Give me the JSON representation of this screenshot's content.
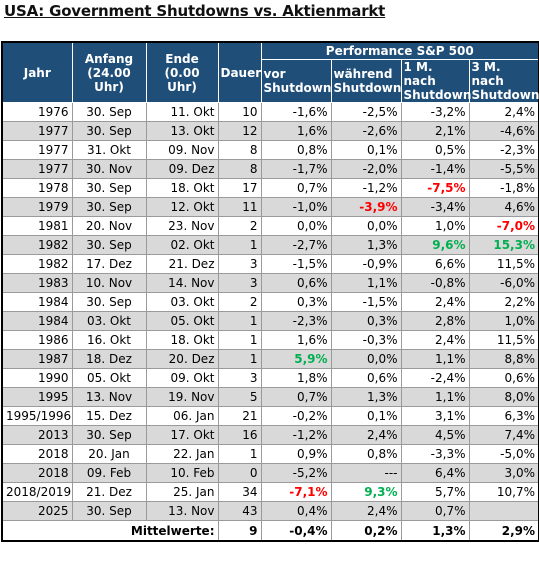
{
  "title": "USA: Government Shutdowns vs. Aktienmarkt",
  "header": {
    "jahr": "Jahr",
    "anfang": "Anfang (24.00 Uhr)",
    "ende": "Ende (0.00 Uhr)",
    "dauer": "Dauer",
    "perf": "Performance S&P 500",
    "vor": "vor Shutdown",
    "waehrend": "während Shutdown",
    "m1": "1 M. nach Shutdown",
    "m3": "3 M. nach Shutdown"
  },
  "rows": [
    {
      "jahr": "1976",
      "anfang": "30. Sep",
      "ende": "11. Okt",
      "dauer": "10",
      "vor": "-1,6%",
      "waehrend": "-2,5%",
      "m1": "-3,2%",
      "m3": "2,4%"
    },
    {
      "jahr": "1977",
      "anfang": "30. Sep",
      "ende": "13. Okt",
      "dauer": "12",
      "vor": "1,6%",
      "waehrend": "-2,6%",
      "m1": "2,1%",
      "m3": "-4,6%"
    },
    {
      "jahr": "1977",
      "anfang": "31. Okt",
      "ende": "09. Nov",
      "dauer": "8",
      "vor": "0,8%",
      "waehrend": "0,1%",
      "m1": "0,5%",
      "m3": "-2,3%"
    },
    {
      "jahr": "1977",
      "anfang": "30. Nov",
      "ende": "09. Dez",
      "dauer": "8",
      "vor": "-1,7%",
      "waehrend": "-2,0%",
      "m1": "-1,4%",
      "m3": "-5,5%"
    },
    {
      "jahr": "1978",
      "anfang": "30. Sep",
      "ende": "18. Okt",
      "dauer": "17",
      "vor": "0,7%",
      "waehrend": "-1,2%",
      "m1": "-7,5%",
      "m3": "-1,8%",
      "hl": {
        "m1": "red"
      }
    },
    {
      "jahr": "1979",
      "anfang": "30. Sep",
      "ende": "12. Okt",
      "dauer": "11",
      "vor": "-1,0%",
      "waehrend": "-3,9%",
      "m1": "-3,4%",
      "m3": "4,6%",
      "hl": {
        "waehrend": "red"
      }
    },
    {
      "jahr": "1981",
      "anfang": "20. Nov",
      "ende": "23. Nov",
      "dauer": "2",
      "vor": "0,0%",
      "waehrend": "0,0%",
      "m1": "1,0%",
      "m3": "-7,0%",
      "hl": {
        "m3": "red"
      }
    },
    {
      "jahr": "1982",
      "anfang": "30. Sep",
      "ende": "02. Okt",
      "dauer": "1",
      "vor": "-2,7%",
      "waehrend": "1,3%",
      "m1": "9,6%",
      "m3": "15,3%",
      "hl": {
        "m1": "green",
        "m3": "green"
      }
    },
    {
      "jahr": "1982",
      "anfang": "17. Dez",
      "ende": "21. Dez",
      "dauer": "3",
      "vor": "-1,5%",
      "waehrend": "-0,9%",
      "m1": "6,6%",
      "m3": "11,5%"
    },
    {
      "jahr": "1983",
      "anfang": "10. Nov",
      "ende": "14. Nov",
      "dauer": "3",
      "vor": "0,6%",
      "waehrend": "1,1%",
      "m1": "-0,8%",
      "m3": "-6,0%"
    },
    {
      "jahr": "1984",
      "anfang": "30. Sep",
      "ende": "03. Okt",
      "dauer": "2",
      "vor": "0,3%",
      "waehrend": "-1,5%",
      "m1": "2,4%",
      "m3": "2,2%"
    },
    {
      "jahr": "1984",
      "anfang": "03. Okt",
      "ende": "05. Okt",
      "dauer": "1",
      "vor": "-2,3%",
      "waehrend": "0,3%",
      "m1": "2,8%",
      "m3": "1,0%"
    },
    {
      "jahr": "1986",
      "anfang": "16. Okt",
      "ende": "18. Okt",
      "dauer": "1",
      "vor": "1,6%",
      "waehrend": "-0,3%",
      "m1": "2,4%",
      "m3": "11,5%"
    },
    {
      "jahr": "1987",
      "anfang": "18. Dez",
      "ende": "20. Dez",
      "dauer": "1",
      "vor": "5,9%",
      "waehrend": "0,0%",
      "m1": "1,1%",
      "m3": "8,8%",
      "hl": {
        "vor": "green"
      }
    },
    {
      "jahr": "1990",
      "anfang": "05. Okt",
      "ende": "09. Okt",
      "dauer": "3",
      "vor": "1,8%",
      "waehrend": "0,6%",
      "m1": "-2,4%",
      "m3": "0,6%"
    },
    {
      "jahr": "1995",
      "anfang": "13. Nov",
      "ende": "19. Nov",
      "dauer": "5",
      "vor": "0,7%",
      "waehrend": "1,3%",
      "m1": "1,1%",
      "m3": "8,0%"
    },
    {
      "jahr": "1995/1996",
      "anfang": "15. Dez",
      "ende": "06. Jan",
      "dauer": "21",
      "vor": "-0,2%",
      "waehrend": "0,1%",
      "m1": "3,1%",
      "m3": "6,3%"
    },
    {
      "jahr": "2013",
      "anfang": "30. Sep",
      "ende": "17. Okt",
      "dauer": "16",
      "vor": "-1,2%",
      "waehrend": "2,4%",
      "m1": "4,5%",
      "m3": "7,4%"
    },
    {
      "jahr": "2018",
      "anfang": "20. Jan",
      "ende": "22. Jan",
      "dauer": "1",
      "vor": "0,9%",
      "waehrend": "0,8%",
      "m1": "-3,3%",
      "m3": "-5,0%"
    },
    {
      "jahr": "2018",
      "anfang": "09. Feb",
      "ende": "10. Feb",
      "dauer": "0",
      "vor": "-5,2%",
      "waehrend": "---",
      "m1": "6,4%",
      "m3": "3,0%"
    },
    {
      "jahr": "2018/2019",
      "anfang": "21. Dez",
      "ende": "25. Jan",
      "dauer": "34",
      "vor": "-7,1%",
      "waehrend": "9,3%",
      "m1": "5,7%",
      "m3": "10,7%",
      "hl": {
        "vor": "red",
        "waehrend": "green"
      }
    },
    {
      "jahr": "2025",
      "anfang": "30. Sep",
      "ende": "13. Nov",
      "dauer": "43",
      "vor": "0,4%",
      "waehrend": "2,4%",
      "m1": "0,7%",
      "m3": ""
    }
  ],
  "footer": {
    "label": "Mittelwerte:",
    "dauer": "9",
    "vor": "-0,4%",
    "waehrend": "0,2%",
    "m1": "1,3%",
    "m3": "2,9%"
  },
  "colors": {
    "header_bg": "#1f4e79",
    "row_alt": "#d9d9d9",
    "neg_highlight": "#ff0000",
    "pos_highlight": "#00b050"
  }
}
